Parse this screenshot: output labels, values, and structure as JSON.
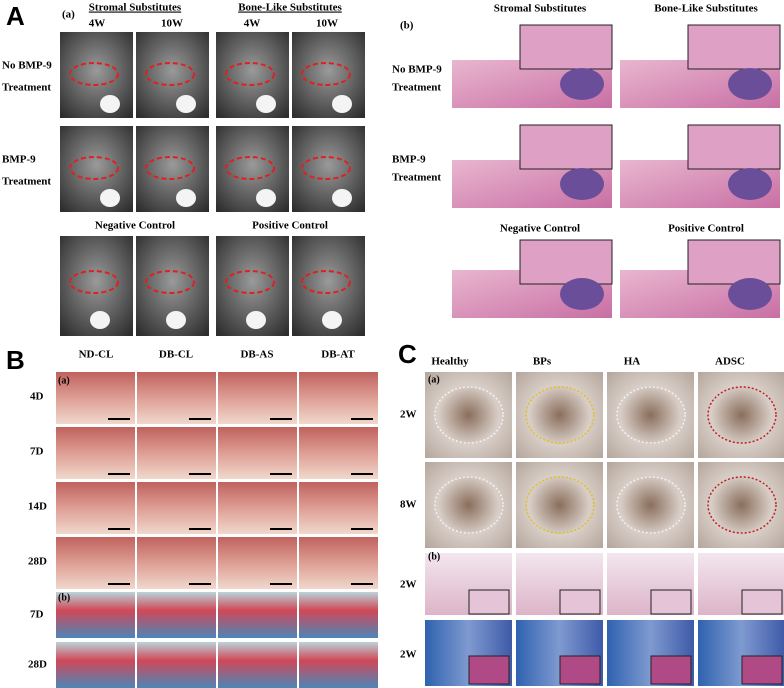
{
  "panel_a": {
    "letter": "A",
    "part_a": {
      "label": "(a)",
      "groups": [
        "Stromal Substitutes",
        "Bone-Like Substitutes"
      ],
      "columns": [
        "4W",
        "10W",
        "4W",
        "10W"
      ],
      "rows": [
        [
          "No BMP-9",
          "Treatment"
        ],
        [
          "BMP-9",
          "Treatment"
        ]
      ],
      "controls": [
        "Negative Control",
        "Positive Control"
      ]
    },
    "part_b": {
      "label": "(b)",
      "groups": [
        "Stromal Substitutes",
        "Bone-Like Substitutes"
      ],
      "rows": [
        [
          "No BMP-9",
          "Treatment"
        ],
        [
          "BMP-9",
          "Treatment"
        ]
      ],
      "controls": [
        "Negative Control",
        "Positive Control"
      ]
    }
  },
  "panel_b": {
    "letter": "B",
    "columns": [
      "ND-CL",
      "DB-CL",
      "DB-AS",
      "DB-AT"
    ],
    "part_a": {
      "label": "(a)",
      "rows": [
        "4D",
        "7D",
        "14D",
        "28D"
      ]
    },
    "part_b": {
      "label": "(b)",
      "rows": [
        "7D",
        "28D"
      ]
    }
  },
  "panel_c": {
    "letter": "C",
    "columns": [
      "Healthy",
      "BPs",
      "HA",
      "ADSC"
    ],
    "part_a": {
      "label": "(a)",
      "rows": [
        "2W",
        "8W"
      ]
    },
    "part_b": {
      "label": "(b)",
      "rows": [
        "2W",
        "2W"
      ]
    }
  }
}
